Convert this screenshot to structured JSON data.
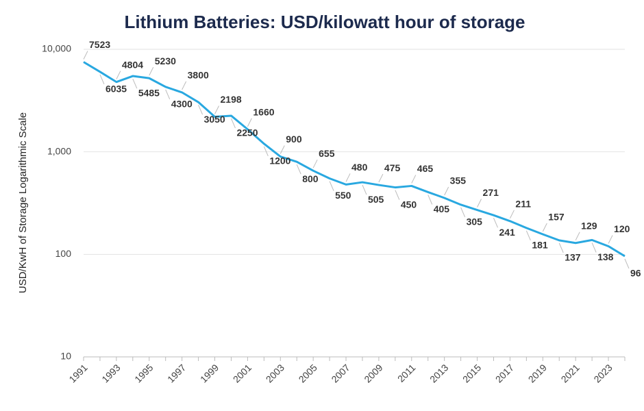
{
  "chart_data": {
    "type": "line",
    "title": "Lithium Batteries: USD/kilowatt hour of storage",
    "y_label": "USD/KwH of Storage Logarithmic Scale",
    "categories": [
      "1991",
      null,
      "1993",
      null,
      "1995",
      null,
      "1997",
      null,
      "1999",
      null,
      "2001",
      null,
      "2003",
      null,
      "2005",
      null,
      "2007",
      null,
      "2009",
      null,
      "2011",
      null,
      "2013",
      null,
      "2015",
      null,
      "2017",
      null,
      "2019",
      null,
      "2021",
      null,
      "2023",
      null
    ],
    "series": [
      {
        "name": "USD/kWh",
        "color": "#29a8e0",
        "values": [
          7523,
          6035,
          4804,
          5485,
          5230,
          4300,
          3800,
          3050,
          2198,
          2250,
          1660,
          1200,
          900,
          800,
          655,
          550,
          480,
          505,
          475,
          450,
          465,
          405,
          355,
          305,
          271,
          241,
          211,
          181,
          157,
          137,
          129,
          138,
          120,
          96
        ]
      }
    ],
    "ylim": [
      10,
      10000
    ],
    "yticks": [
      10,
      100,
      {
        "value": 1000,
        "label": "1,000"
      },
      {
        "value": 10000,
        "label": "10,000"
      }
    ],
    "log_scale": true,
    "grid": true
  }
}
